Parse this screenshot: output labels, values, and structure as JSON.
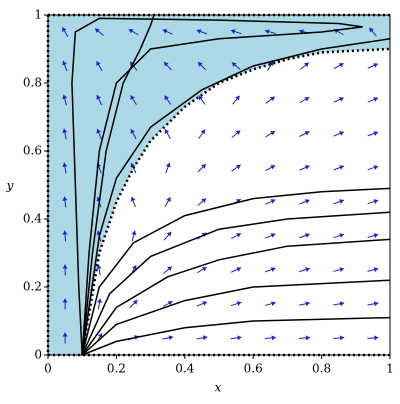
{
  "chart_data": {
    "type": "phase_portrait",
    "x_label": "x",
    "y_label": "y",
    "xlim": [
      0,
      1
    ],
    "ylim": [
      0,
      1
    ],
    "xticks": [
      0,
      0.2,
      0.4,
      0.6,
      0.8,
      1
    ],
    "yticks": [
      0,
      0.2,
      0.4,
      0.6,
      0.8,
      1
    ],
    "region_color": "#add8e6",
    "separatrix": {
      "color": "#000000",
      "x": [
        0.1,
        0.15,
        0.2,
        0.25,
        0.3,
        0.4,
        0.5,
        0.6,
        0.7,
        0.8,
        1
      ],
      "y": [
        0,
        0.3,
        0.45,
        0.55,
        0.63,
        0.73,
        0.8,
        0.84,
        0.87,
        0.89,
        0.9
      ]
    },
    "series": [
      {
        "color": "#000000",
        "x": [
          0.1,
          0.09,
          0.08,
          0.07,
          0.08,
          0.15,
          0.5,
          0.85,
          0.92,
          0.8,
          0.5,
          0.3,
          0.2,
          0.15,
          0.12,
          0.1
        ],
        "y": [
          0,
          0.2,
          0.5,
          0.8,
          0.95,
          0.99,
          0.985,
          0.975,
          0.965,
          0.95,
          0.93,
          0.9,
          0.8,
          0.6,
          0.3,
          0
        ]
      },
      {
        "color": "#000000",
        "x": [
          0.1,
          0.13,
          0.17,
          0.22,
          0.27,
          0.3,
          0.31
        ],
        "y": [
          0,
          0.3,
          0.6,
          0.8,
          0.9,
          0.97,
          1
        ]
      },
      {
        "color": "#000000",
        "x": [
          0.1,
          0.15,
          0.2,
          0.3,
          0.45,
          0.6,
          0.8,
          1
        ],
        "y": [
          0,
          0.35,
          0.52,
          0.67,
          0.78,
          0.85,
          0.9,
          0.93
        ]
      },
      {
        "color": "#000000",
        "x": [
          0.1,
          0.15,
          0.25,
          0.4,
          0.6,
          0.8,
          1
        ],
        "y": [
          0,
          0.2,
          0.33,
          0.41,
          0.46,
          0.48,
          0.49
        ]
      },
      {
        "color": "#000000",
        "x": [
          0.1,
          0.18,
          0.3,
          0.5,
          0.7,
          1
        ],
        "y": [
          0,
          0.18,
          0.29,
          0.37,
          0.4,
          0.42
        ]
      },
      {
        "color": "#000000",
        "x": [
          0.1,
          0.2,
          0.35,
          0.5,
          0.7,
          1
        ],
        "y": [
          0,
          0.14,
          0.23,
          0.28,
          0.32,
          0.34
        ]
      },
      {
        "color": "#000000",
        "x": [
          0.1,
          0.2,
          0.4,
          0.6,
          1
        ],
        "y": [
          0,
          0.09,
          0.16,
          0.2,
          0.22
        ]
      },
      {
        "color": "#000000",
        "x": [
          0.1,
          0.2,
          0.4,
          0.6,
          1
        ],
        "y": [
          0,
          0.04,
          0.08,
          0.1,
          0.11
        ]
      }
    ],
    "field": {
      "color": "#1f1fd6",
      "x": [
        0.05,
        0.15,
        0.25,
        0.35,
        0.45,
        0.55,
        0.65,
        0.75,
        0.85,
        0.95
      ],
      "y": [
        0.05,
        0.15,
        0.25,
        0.35,
        0.45,
        0.55,
        0.65,
        0.75,
        0.85,
        0.95
      ],
      "angles": [
        [
          90,
          60,
          20,
          12,
          10,
          8,
          6,
          5,
          5,
          5
        ],
        [
          90,
          80,
          45,
          30,
          22,
          18,
          15,
          12,
          10,
          10
        ],
        [
          92,
          100,
          60,
          40,
          30,
          24,
          20,
          17,
          15,
          14
        ],
        [
          95,
          105,
          75,
          50,
          36,
          28,
          23,
          20,
          18,
          16
        ],
        [
          98,
          108,
          110,
          60,
          40,
          30,
          25,
          22,
          20,
          18
        ],
        [
          100,
          110,
          115,
          70,
          45,
          35,
          28,
          24,
          21,
          19
        ],
        [
          102,
          112,
          118,
          120,
          55,
          40,
          32,
          27,
          23,
          20
        ],
        [
          105,
          115,
          122,
          125,
          125,
          50,
          37,
          30,
          25,
          22
        ],
        [
          110,
          120,
          128,
          132,
          135,
          140,
          60,
          38,
          28,
          24
        ],
        [
          120,
          140,
          150,
          155,
          160,
          162,
          165,
          165,
          150,
          130
        ]
      ]
    }
  }
}
